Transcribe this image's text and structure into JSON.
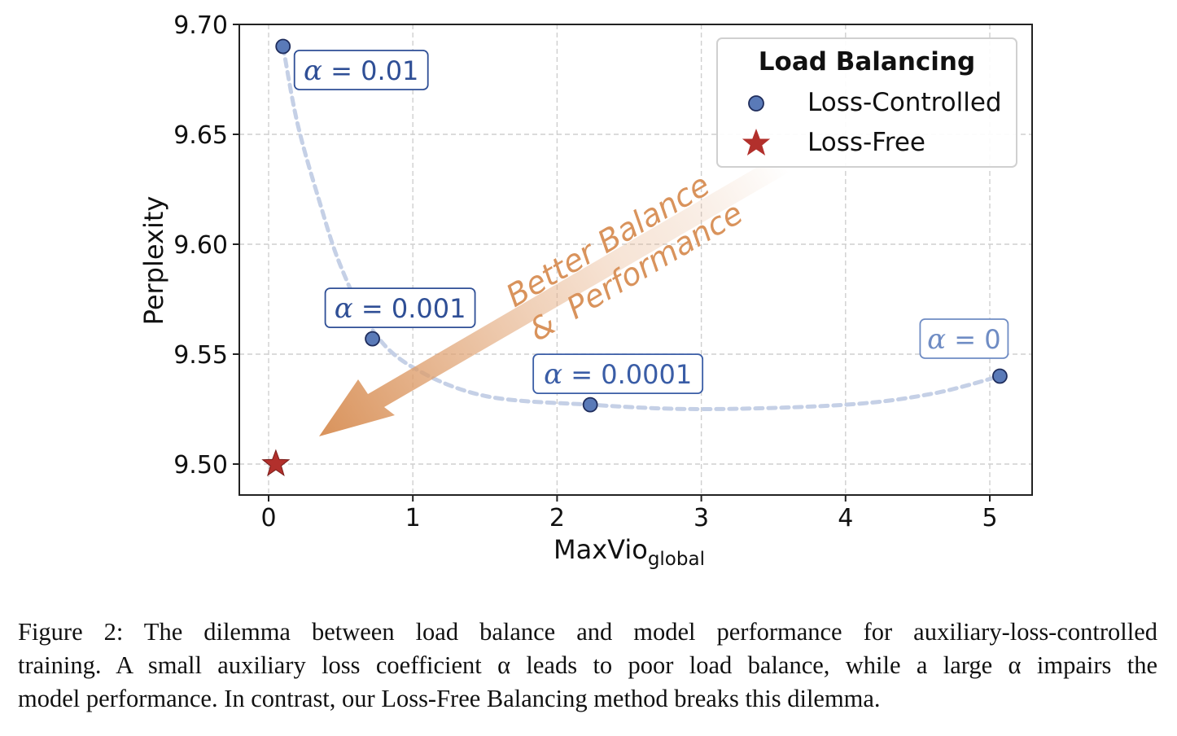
{
  "chart_data": {
    "type": "scatter",
    "xlabel": "MaxVio",
    "xlabel_sub": "global",
    "ylabel": "Perplexity",
    "xlim": [
      -0.2,
      5.3
    ],
    "ylim": [
      9.486,
      9.702
    ],
    "x_ticks": [
      0,
      1,
      2,
      3,
      4,
      5
    ],
    "x_tick_labels": [
      "0",
      "1",
      "2",
      "3",
      "4",
      "5"
    ],
    "y_ticks": [
      9.5,
      9.55,
      9.6,
      9.65,
      9.7
    ],
    "y_tick_labels": [
      "9.50",
      "9.55",
      "9.60",
      "9.65",
      "9.70"
    ],
    "grid": true,
    "legend": {
      "title": "Load Balancing",
      "placement": "top-right",
      "entries": [
        "Loss-Controlled",
        "Loss-Free"
      ]
    },
    "series": [
      {
        "name": "Loss-Controlled",
        "marker": "circle",
        "color": "#5a7ab8",
        "edge_color": "#1f2d5c",
        "points": [
          {
            "x": 0.1,
            "y": 9.69,
            "label_prefix": "α",
            "label_value": "0.01"
          },
          {
            "x": 0.72,
            "y": 9.557,
            "label_prefix": "α",
            "label_value": "0.001"
          },
          {
            "x": 2.23,
            "y": 9.527,
            "label_prefix": "α",
            "label_value": "0.0001"
          },
          {
            "x": 5.07,
            "y": 9.54,
            "label_prefix": "α",
            "label_value": "0"
          }
        ]
      },
      {
        "name": "Loss-Free",
        "marker": "star",
        "color": "#b2302c",
        "points": [
          {
            "x": 0.05,
            "y": 9.5
          }
        ]
      }
    ],
    "trend_curve": [
      [
        0.1,
        9.69
      ],
      [
        0.2,
        9.655
      ],
      [
        0.35,
        9.62
      ],
      [
        0.5,
        9.59
      ],
      [
        0.72,
        9.561
      ],
      [
        1.0,
        9.544
      ],
      [
        1.5,
        9.531
      ],
      [
        2.23,
        9.527
      ],
      [
        3.0,
        9.525
      ],
      [
        4.0,
        9.527
      ],
      [
        4.6,
        9.532
      ],
      [
        5.07,
        9.54
      ]
    ],
    "arrow_annotation": {
      "line1": "Better Balance",
      "line2": "&  Performance",
      "color": "#d9935c"
    },
    "annotation_colors": [
      "#2f4f96",
      "#2f4f96",
      "#3a5da6",
      "#6f8cc4"
    ]
  },
  "caption": {
    "lines": [
      "Figure 2: The dilemma between load balance and model performance for auxiliary-loss-controlled",
      "training. A small auxiliary loss coefficient α leads to poor load balance, while a large α impairs the",
      "model performance. In contrast, our Loss-Free Balancing method breaks this dilemma."
    ]
  }
}
